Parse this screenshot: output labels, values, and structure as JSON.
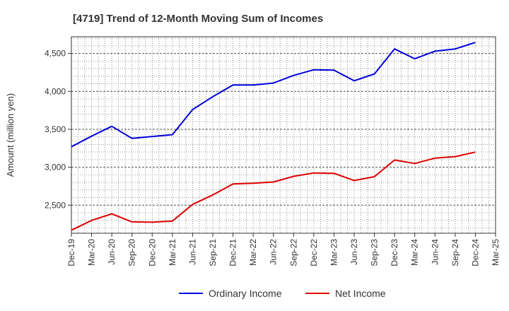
{
  "chart_data": {
    "type": "line",
    "title": "[4719]  Trend of 12-Month Moving Sum of Incomes",
    "xlabel": "",
    "ylabel": "Amount (million yen)",
    "ylim": [
      2130,
      4720
    ],
    "yticks": [
      2500,
      3000,
      3500,
      4000,
      4500
    ],
    "ytick_labels": [
      "2,500",
      "3,000",
      "3,500",
      "4,000",
      "4,500"
    ],
    "categories": [
      "Dec-19",
      "Mar-20",
      "Jun-20",
      "Sep-20",
      "Dec-20",
      "Mar-21",
      "Jun-21",
      "Sep-21",
      "Dec-21",
      "Mar-22",
      "Jun-22",
      "Sep-22",
      "Dec-22",
      "Mar-23",
      "Jun-23",
      "Sep-23",
      "Dec-23",
      "Mar-24",
      "Jun-24",
      "Sep-24",
      "Dec-24",
      "Mar-25"
    ],
    "grid": true,
    "legend_position": "bottom",
    "series": [
      {
        "name": "Ordinary Income",
        "color": "#0000dd",
        "values": [
          3270,
          3410,
          3540,
          3380,
          3405,
          3430,
          3760,
          3930,
          4085,
          4085,
          4110,
          4210,
          4285,
          4280,
          4140,
          4230,
          4560,
          4430,
          4530,
          4560,
          4645,
          null
        ]
      },
      {
        "name": "Net Income",
        "color": "#dd0000",
        "values": [
          2170,
          2300,
          2385,
          2280,
          2275,
          2290,
          2510,
          2635,
          2780,
          2790,
          2805,
          2880,
          2925,
          2920,
          2825,
          2875,
          3095,
          3050,
          3120,
          3140,
          3200,
          null
        ]
      }
    ]
  }
}
